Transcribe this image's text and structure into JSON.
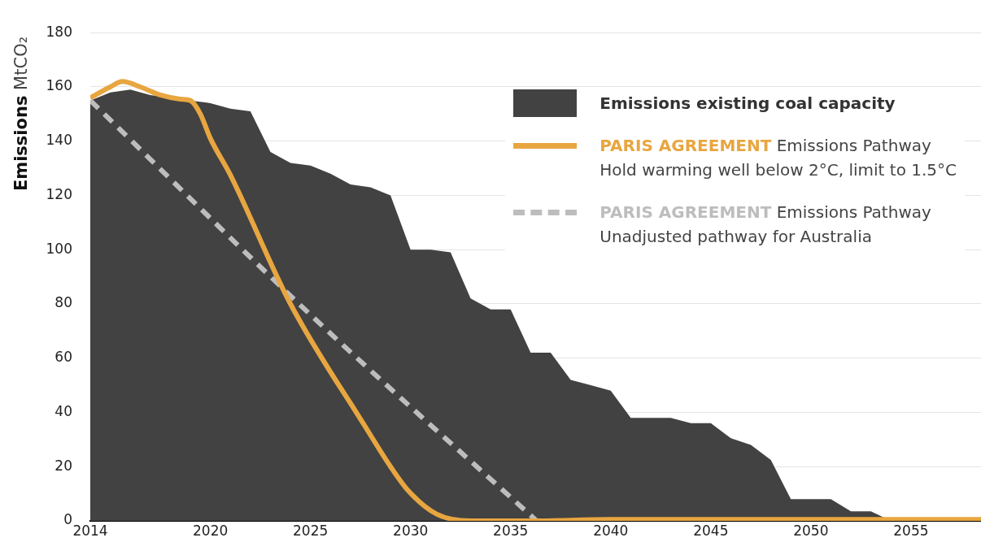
{
  "chart_data": {
    "type": "line",
    "ylabel": "Emissions MtCO₂",
    "x": [
      2014,
      2015,
      2016,
      2017,
      2018,
      2019,
      2020,
      2021,
      2022,
      2023,
      2024,
      2025,
      2026,
      2027,
      2028,
      2029,
      2030,
      2031,
      2032,
      2033,
      2034,
      2035,
      2036,
      2037,
      2038,
      2039,
      2040,
      2041,
      2042,
      2043,
      2044,
      2045,
      2046,
      2047,
      2048,
      2049,
      2050,
      2051,
      2052,
      2053,
      2054,
      2055,
      2056,
      2057,
      2058
    ],
    "series": [
      {
        "name": "Emissions existing coal capacity",
        "type": "area",
        "color": "#424242",
        "values": [
          155,
          158,
          159,
          157,
          156,
          155,
          154,
          152,
          151,
          136,
          132,
          131,
          128,
          124,
          123,
          120,
          100,
          100,
          99,
          82,
          78,
          78,
          62,
          62,
          52,
          50,
          48,
          38,
          38,
          38,
          36,
          36,
          30.5,
          28,
          22.5,
          8,
          8,
          8,
          3.5,
          3.5,
          0,
          0,
          0,
          0,
          0
        ]
      },
      {
        "name": "PARIS AGREEMENT Emissions Pathway Unadjusted pathway for Australia",
        "type": "line",
        "color": "#bdbdbd",
        "line_style": "dashed",
        "x": [
          2014,
          2025,
          2036.3
        ],
        "values": [
          155,
          76,
          0
        ]
      },
      {
        "name": "PARIS AGREEMENT Emissions Pathway Hold warming well below 2°C, limit to 1.5°C",
        "type": "line",
        "color": "#e8a640",
        "line_style": "solid",
        "x": [
          2014,
          2015,
          2015.6,
          2016.5,
          2017.5,
          2018.5,
          2019,
          2019.5,
          2020,
          2021,
          2024,
          2027.8,
          2029,
          2029.9,
          2031.3,
          2033,
          2036,
          2040,
          2050,
          2058.5
        ],
        "values": [
          156,
          160,
          162,
          160,
          157,
          155.5,
          155,
          150,
          141,
          127.5,
          80,
          34,
          20,
          11,
          2.5,
          0,
          0,
          0.5,
          0.5,
          0.5
        ]
      }
    ],
    "xlim": [
      2014,
      2058.5
    ],
    "xticks": [
      2014,
      2020,
      2025,
      2030,
      2035,
      2040,
      2045,
      2050,
      2055
    ],
    "ylim": [
      0,
      180
    ],
    "yticks": [
      0,
      20,
      40,
      60,
      80,
      100,
      120,
      140,
      160,
      180
    ],
    "grid": "y",
    "legend": "top right",
    "marker": "none"
  }
}
